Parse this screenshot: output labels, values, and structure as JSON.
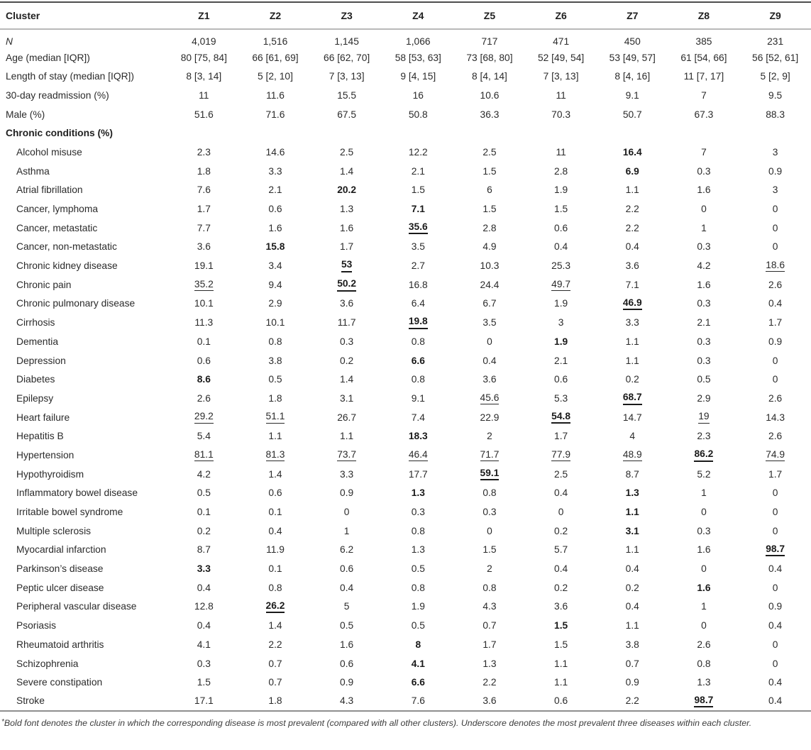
{
  "table": {
    "header": {
      "label": "Cluster",
      "clusters": [
        "Z1",
        "Z2",
        "Z3",
        "Z4",
        "Z5",
        "Z6",
        "Z7",
        "Z8",
        "Z9"
      ]
    },
    "summary_rows": [
      {
        "label": "N",
        "italic": true,
        "values": [
          "4,019",
          "1,516",
          "1,145",
          "1,066",
          "717",
          "471",
          "450",
          "385",
          "231"
        ]
      },
      {
        "label": "Age (median [IQR])",
        "values": [
          "80 [75, 84]",
          "66 [61, 69]",
          "66 [62, 70]",
          "58 [53, 63]",
          "73 [68, 80]",
          "52 [49, 54]",
          "53 [49, 57]",
          "61 [54, 66]",
          "56 [52, 61]"
        ]
      },
      {
        "label": "Length of stay (median [IQR])",
        "values": [
          "8 [3, 14]",
          "5 [2, 10]",
          "7 [3, 13]",
          "9 [4, 15]",
          "8 [4, 14]",
          "7 [3, 13]",
          "8 [4, 16]",
          "11 [7, 17]",
          "5 [2, 9]"
        ]
      },
      {
        "label": "30-day readmission (%)",
        "values": [
          "11",
          "11.6",
          "15.5",
          "16",
          "10.6",
          "11",
          "9.1",
          "7",
          "9.5"
        ]
      },
      {
        "label": "Male (%)",
        "values": [
          "51.6",
          "71.6",
          "67.5",
          "50.8",
          "36.3",
          "70.3",
          "50.7",
          "67.3",
          "88.3"
        ]
      }
    ],
    "section_header": "Chronic conditions (%)",
    "condition_rows": [
      {
        "label": "Alcohol misuse",
        "cells": [
          {
            "v": "2.3"
          },
          {
            "v": "14.6"
          },
          {
            "v": "2.5"
          },
          {
            "v": "12.2"
          },
          {
            "v": "2.5"
          },
          {
            "v": "11"
          },
          {
            "v": "16.4",
            "b": 1
          },
          {
            "v": "7"
          },
          {
            "v": "3"
          }
        ]
      },
      {
        "label": "Asthma",
        "cells": [
          {
            "v": "1.8"
          },
          {
            "v": "3.3"
          },
          {
            "v": "1.4"
          },
          {
            "v": "2.1"
          },
          {
            "v": "1.5"
          },
          {
            "v": "2.8"
          },
          {
            "v": "6.9",
            "b": 1
          },
          {
            "v": "0.3"
          },
          {
            "v": "0.9"
          }
        ]
      },
      {
        "label": "Atrial fibrillation",
        "cells": [
          {
            "v": "7.6"
          },
          {
            "v": "2.1"
          },
          {
            "v": "20.2",
            "b": 1
          },
          {
            "v": "1.5"
          },
          {
            "v": "6"
          },
          {
            "v": "1.9"
          },
          {
            "v": "1.1"
          },
          {
            "v": "1.6"
          },
          {
            "v": "3"
          }
        ]
      },
      {
        "label": "Cancer, lymphoma",
        "cells": [
          {
            "v": "1.7"
          },
          {
            "v": "0.6"
          },
          {
            "v": "1.3"
          },
          {
            "v": "7.1",
            "b": 1
          },
          {
            "v": "1.5"
          },
          {
            "v": "1.5"
          },
          {
            "v": "2.2"
          },
          {
            "v": "0"
          },
          {
            "v": "0"
          }
        ]
      },
      {
        "label": "Cancer, metastatic",
        "cells": [
          {
            "v": "7.7"
          },
          {
            "v": "1.6"
          },
          {
            "v": "1.6"
          },
          {
            "v": "35.6",
            "b": 1,
            "u": 1
          },
          {
            "v": "2.8"
          },
          {
            "v": "0.6"
          },
          {
            "v": "2.2"
          },
          {
            "v": "1"
          },
          {
            "v": "0"
          }
        ]
      },
      {
        "label": "Cancer, non-metastatic",
        "cells": [
          {
            "v": "3.6"
          },
          {
            "v": "15.8",
            "b": 1
          },
          {
            "v": "1.7"
          },
          {
            "v": "3.5"
          },
          {
            "v": "4.9"
          },
          {
            "v": "0.4"
          },
          {
            "v": "0.4"
          },
          {
            "v": "0.3"
          },
          {
            "v": "0"
          }
        ]
      },
      {
        "label": "Chronic kidney disease",
        "cells": [
          {
            "v": "19.1"
          },
          {
            "v": "3.4"
          },
          {
            "v": "53",
            "b": 1,
            "u": 1
          },
          {
            "v": "2.7"
          },
          {
            "v": "10.3"
          },
          {
            "v": "25.3"
          },
          {
            "v": "3.6"
          },
          {
            "v": "4.2"
          },
          {
            "v": "18.6",
            "u": 1
          }
        ]
      },
      {
        "label": "Chronic pain",
        "cells": [
          {
            "v": "35.2",
            "u": 1
          },
          {
            "v": "9.4"
          },
          {
            "v": "50.2",
            "b": 1,
            "u": 1
          },
          {
            "v": "16.8"
          },
          {
            "v": "24.4"
          },
          {
            "v": "49.7",
            "u": 1
          },
          {
            "v": "7.1"
          },
          {
            "v": "1.6"
          },
          {
            "v": "2.6"
          }
        ]
      },
      {
        "label": "Chronic pulmonary disease",
        "cells": [
          {
            "v": "10.1"
          },
          {
            "v": "2.9"
          },
          {
            "v": "3.6"
          },
          {
            "v": "6.4"
          },
          {
            "v": "6.7"
          },
          {
            "v": "1.9"
          },
          {
            "v": "46.9",
            "b": 1,
            "u": 1
          },
          {
            "v": "0.3"
          },
          {
            "v": "0.4"
          }
        ]
      },
      {
        "label": "Cirrhosis",
        "cells": [
          {
            "v": "11.3"
          },
          {
            "v": "10.1"
          },
          {
            "v": "11.7"
          },
          {
            "v": "19.8",
            "b": 1,
            "u": 1
          },
          {
            "v": "3.5"
          },
          {
            "v": "3"
          },
          {
            "v": "3.3"
          },
          {
            "v": "2.1"
          },
          {
            "v": "1.7"
          }
        ]
      },
      {
        "label": "Dementia",
        "cells": [
          {
            "v": "0.1"
          },
          {
            "v": "0.8"
          },
          {
            "v": "0.3"
          },
          {
            "v": "0.8"
          },
          {
            "v": "0"
          },
          {
            "v": "1.9",
            "b": 1
          },
          {
            "v": "1.1"
          },
          {
            "v": "0.3"
          },
          {
            "v": "0.9"
          }
        ]
      },
      {
        "label": "Depression",
        "cells": [
          {
            "v": "0.6"
          },
          {
            "v": "3.8"
          },
          {
            "v": "0.2"
          },
          {
            "v": "6.6",
            "b": 1
          },
          {
            "v": "0.4"
          },
          {
            "v": "2.1"
          },
          {
            "v": "1.1"
          },
          {
            "v": "0.3"
          },
          {
            "v": "0"
          }
        ]
      },
      {
        "label": "Diabetes",
        "cells": [
          {
            "v": "8.6",
            "b": 1
          },
          {
            "v": "0.5"
          },
          {
            "v": "1.4"
          },
          {
            "v": "0.8"
          },
          {
            "v": "3.6"
          },
          {
            "v": "0.6"
          },
          {
            "v": "0.2"
          },
          {
            "v": "0.5"
          },
          {
            "v": "0"
          }
        ]
      },
      {
        "label": "Epilepsy",
        "cells": [
          {
            "v": "2.6"
          },
          {
            "v": "1.8"
          },
          {
            "v": "3.1"
          },
          {
            "v": "9.1"
          },
          {
            "v": "45.6",
            "u": 1
          },
          {
            "v": "5.3"
          },
          {
            "v": "68.7",
            "b": 1,
            "u": 1
          },
          {
            "v": "2.9"
          },
          {
            "v": "2.6"
          }
        ]
      },
      {
        "label": "Heart failure",
        "cells": [
          {
            "v": "29.2",
            "u": 1
          },
          {
            "v": "51.1",
            "u": 1
          },
          {
            "v": "26.7"
          },
          {
            "v": "7.4"
          },
          {
            "v": "22.9"
          },
          {
            "v": "54.8",
            "b": 1,
            "u": 1
          },
          {
            "v": "14.7"
          },
          {
            "v": "19",
            "u": 1
          },
          {
            "v": "14.3"
          }
        ]
      },
      {
        "label": "Hepatitis B",
        "cells": [
          {
            "v": "5.4"
          },
          {
            "v": "1.1"
          },
          {
            "v": "1.1"
          },
          {
            "v": "18.3",
            "b": 1
          },
          {
            "v": "2"
          },
          {
            "v": "1.7"
          },
          {
            "v": "4"
          },
          {
            "v": "2.3"
          },
          {
            "v": "2.6"
          }
        ]
      },
      {
        "label": "Hypertension",
        "cells": [
          {
            "v": "81.1",
            "u": 1
          },
          {
            "v": "81.3",
            "u": 1
          },
          {
            "v": "73.7",
            "u": 1
          },
          {
            "v": "46.4",
            "u": 1
          },
          {
            "v": "71.7",
            "u": 1
          },
          {
            "v": "77.9",
            "u": 1
          },
          {
            "v": "48.9",
            "u": 1
          },
          {
            "v": "86.2",
            "b": 1,
            "u": 1
          },
          {
            "v": "74.9",
            "u": 1
          }
        ]
      },
      {
        "label": "Hypothyroidism",
        "cells": [
          {
            "v": "4.2"
          },
          {
            "v": "1.4"
          },
          {
            "v": "3.3"
          },
          {
            "v": "17.7"
          },
          {
            "v": "59.1",
            "b": 1,
            "u": 1
          },
          {
            "v": "2.5"
          },
          {
            "v": "8.7"
          },
          {
            "v": "5.2"
          },
          {
            "v": "1.7"
          }
        ]
      },
      {
        "label": "Inflammatory bowel disease",
        "cells": [
          {
            "v": "0.5"
          },
          {
            "v": "0.6"
          },
          {
            "v": "0.9"
          },
          {
            "v": "1.3",
            "b": 1
          },
          {
            "v": "0.8"
          },
          {
            "v": "0.4"
          },
          {
            "v": "1.3",
            "b": 1
          },
          {
            "v": "1"
          },
          {
            "v": "0"
          }
        ]
      },
      {
        "label": "Irritable bowel syndrome",
        "cells": [
          {
            "v": "0.1"
          },
          {
            "v": "0.1"
          },
          {
            "v": "0"
          },
          {
            "v": "0.3"
          },
          {
            "v": "0.3"
          },
          {
            "v": "0"
          },
          {
            "v": "1.1",
            "b": 1
          },
          {
            "v": "0"
          },
          {
            "v": "0"
          }
        ]
      },
      {
        "label": "Multiple sclerosis",
        "cells": [
          {
            "v": "0.2"
          },
          {
            "v": "0.4"
          },
          {
            "v": "1"
          },
          {
            "v": "0.8"
          },
          {
            "v": "0"
          },
          {
            "v": "0.2"
          },
          {
            "v": "3.1",
            "b": 1
          },
          {
            "v": "0.3"
          },
          {
            "v": "0"
          }
        ]
      },
      {
        "label": "Myocardial infarction",
        "cells": [
          {
            "v": "8.7"
          },
          {
            "v": "11.9"
          },
          {
            "v": "6.2"
          },
          {
            "v": "1.3"
          },
          {
            "v": "1.5"
          },
          {
            "v": "5.7"
          },
          {
            "v": "1.1"
          },
          {
            "v": "1.6"
          },
          {
            "v": "98.7",
            "b": 1,
            "u": 1
          }
        ]
      },
      {
        "label": "Parkinson’s disease",
        "cells": [
          {
            "v": "3.3",
            "b": 1
          },
          {
            "v": "0.1"
          },
          {
            "v": "0.6"
          },
          {
            "v": "0.5"
          },
          {
            "v": "2"
          },
          {
            "v": "0.4"
          },
          {
            "v": "0.4"
          },
          {
            "v": "0"
          },
          {
            "v": "0.4"
          }
        ]
      },
      {
        "label": "Peptic ulcer disease",
        "cells": [
          {
            "v": "0.4"
          },
          {
            "v": "0.8"
          },
          {
            "v": "0.4"
          },
          {
            "v": "0.8"
          },
          {
            "v": "0.8"
          },
          {
            "v": "0.2"
          },
          {
            "v": "0.2"
          },
          {
            "v": "1.6",
            "b": 1
          },
          {
            "v": "0"
          }
        ]
      },
      {
        "label": "Peripheral vascular disease",
        "cells": [
          {
            "v": "12.8"
          },
          {
            "v": "26.2",
            "b": 1,
            "u": 1
          },
          {
            "v": "5"
          },
          {
            "v": "1.9"
          },
          {
            "v": "4.3"
          },
          {
            "v": "3.6"
          },
          {
            "v": "0.4"
          },
          {
            "v": "1"
          },
          {
            "v": "0.9"
          }
        ]
      },
      {
        "label": "Psoriasis",
        "cells": [
          {
            "v": "0.4"
          },
          {
            "v": "1.4"
          },
          {
            "v": "0.5"
          },
          {
            "v": "0.5"
          },
          {
            "v": "0.7"
          },
          {
            "v": "1.5",
            "b": 1
          },
          {
            "v": "1.1"
          },
          {
            "v": "0"
          },
          {
            "v": "0.4"
          }
        ]
      },
      {
        "label": "Rheumatoid arthritis",
        "cells": [
          {
            "v": "4.1"
          },
          {
            "v": "2.2"
          },
          {
            "v": "1.6"
          },
          {
            "v": "8",
            "b": 1
          },
          {
            "v": "1.7"
          },
          {
            "v": "1.5"
          },
          {
            "v": "3.8"
          },
          {
            "v": "2.6"
          },
          {
            "v": "0"
          }
        ]
      },
      {
        "label": "Schizophrenia",
        "cells": [
          {
            "v": "0.3"
          },
          {
            "v": "0.7"
          },
          {
            "v": "0.6"
          },
          {
            "v": "4.1",
            "b": 1
          },
          {
            "v": "1.3"
          },
          {
            "v": "1.1"
          },
          {
            "v": "0.7"
          },
          {
            "v": "0.8"
          },
          {
            "v": "0"
          }
        ]
      },
      {
        "label": "Severe constipation",
        "cells": [
          {
            "v": "1.5"
          },
          {
            "v": "0.7"
          },
          {
            "v": "0.9"
          },
          {
            "v": "6.6",
            "b": 1
          },
          {
            "v": "2.2"
          },
          {
            "v": "1.1"
          },
          {
            "v": "0.9"
          },
          {
            "v": "1.3"
          },
          {
            "v": "0.4"
          }
        ]
      },
      {
        "label": "Stroke",
        "cells": [
          {
            "v": "17.1"
          },
          {
            "v": "1.8"
          },
          {
            "v": "4.3"
          },
          {
            "v": "7.6"
          },
          {
            "v": "3.6"
          },
          {
            "v": "0.6"
          },
          {
            "v": "2.2"
          },
          {
            "v": "98.7",
            "b": 1,
            "u": 1
          },
          {
            "v": "0.4"
          }
        ]
      }
    ]
  },
  "footnote": {
    "marker": "*",
    "text": "Bold font denotes the cluster in which the corresponding disease is most prevalent (compared with all other clusters). Underscore denotes the most prevalent three diseases within each cluster."
  }
}
